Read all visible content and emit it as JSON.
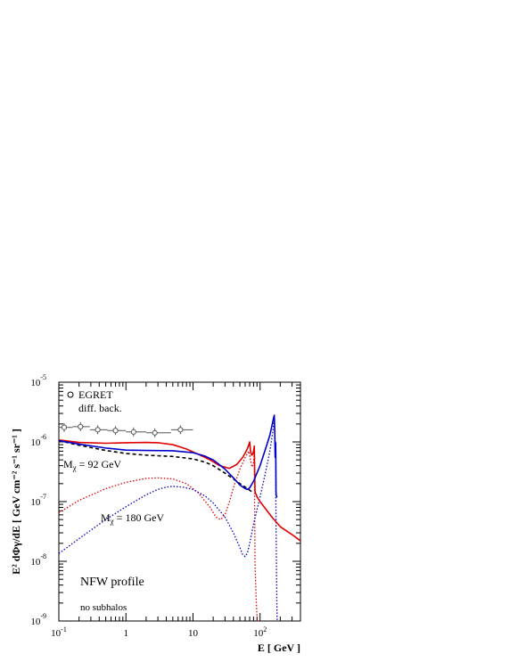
{
  "chart_data": {
    "type": "line",
    "title": "",
    "xlabel": "E [ GeV ]",
    "ylabel": "E² dΦγ/dE [ GeV cm⁻² s⁻¹ sr⁻¹ ]",
    "xscale": "log",
    "yscale": "log",
    "xlim": [
      0.1,
      400
    ],
    "ylim": [
      1e-09,
      1e-05
    ],
    "x_tick_labels": [
      {
        "value": 0.1,
        "base": "10",
        "exp": "-1"
      },
      {
        "value": 1,
        "base": "1",
        "exp": ""
      },
      {
        "value": 10,
        "base": "10",
        "exp": ""
      },
      {
        "value": 100,
        "base": "10",
        "exp": "2"
      }
    ],
    "y_tick_labels": [
      {
        "value": 1e-09,
        "base": "10",
        "exp": "-9"
      },
      {
        "value": 1e-08,
        "base": "10",
        "exp": "-8"
      },
      {
        "value": 1e-07,
        "base": "10",
        "exp": "-7"
      },
      {
        "value": 1e-06,
        "base": "10",
        "exp": "-6"
      },
      {
        "value": 1e-05,
        "base": "10",
        "exp": "-5"
      }
    ],
    "grid": false,
    "legend": {
      "position": "top-left",
      "marker_label": "EGRET",
      "line_label": "diff. back."
    },
    "annotations": {
      "m92": {
        "base": "M",
        "sub": "χ",
        "rest": " = 92 GeV",
        "color": "#e00000"
      },
      "m180": {
        "base": "M",
        "sub": "χ",
        "rest": " = 180 GeV",
        "color": "#0000cc"
      },
      "profile": "NFW profile",
      "subhalos": "no subhalos"
    },
    "series": [
      {
        "key": "egret",
        "style": "points",
        "color": "#555555",
        "x": [
          0.12,
          0.21,
          0.38,
          0.7,
          1.3,
          2.7,
          6.5
        ],
        "y": [
          1.75e-06,
          1.8e-06,
          1.6e-06,
          1.55e-06,
          1.47e-06,
          1.42e-06,
          1.6e-06
        ],
        "xerr_low": [
          0.1,
          0.16,
          0.29,
          0.53,
          1.0,
          2.0,
          4.7
        ],
        "xerr_high": [
          0.16,
          0.29,
          0.53,
          1.0,
          2.0,
          4.7,
          10.0
        ]
      },
      {
        "key": "background",
        "style": "dashed",
        "color": "#000000",
        "x": [
          0.1,
          0.2,
          0.5,
          1,
          2,
          5,
          10,
          15,
          20,
          30,
          40,
          50,
          60,
          70,
          80
        ],
        "y": [
          1.05e-06,
          8.8e-07,
          7.2e-07,
          6.4e-07,
          6e-07,
          5.7e-07,
          5.2e-07,
          4.6e-07,
          4e-07,
          3e-07,
          2.4e-07,
          2e-07,
          1.75e-07,
          1.55e-07,
          1.4e-07
        ]
      },
      {
        "key": "dm92_dotted",
        "style": "dotted",
        "color": "#e00000",
        "x": [
          0.1,
          0.2,
          0.5,
          1,
          2,
          3,
          5,
          8,
          12,
          18,
          22,
          26,
          30,
          35,
          40,
          50,
          60,
          68,
          72,
          76,
          80,
          82,
          83,
          84,
          86,
          88,
          90,
          91,
          92
        ],
        "y": [
          6.5e-08,
          1.05e-07,
          1.65e-07,
          2.1e-07,
          2.45e-07,
          2.5e-07,
          2.4e-07,
          2e-07,
          1.4e-07,
          8e-08,
          5.5e-08,
          5e-08,
          6e-08,
          1e-07,
          1.7e-07,
          3.5e-07,
          5.5e-07,
          7e-07,
          5e-07,
          3.8e-07,
          4.5e-07,
          6.5e-07,
          1e-07,
          1e-08,
          4e-09,
          2e-09,
          1.2e-09,
          1e-09,
          1e-09
        ]
      },
      {
        "key": "dm180_dotted",
        "style": "dotted",
        "color": "#0000cc",
        "x": [
          0.1,
          0.2,
          0.5,
          1,
          2,
          3,
          4,
          5,
          7,
          10,
          15,
          20,
          30,
          40,
          50,
          55,
          60,
          65,
          70,
          80,
          100,
          120,
          140,
          155,
          160,
          163,
          166,
          168,
          170,
          172,
          175,
          178,
          180
        ],
        "y": [
          1.35e-08,
          2.4e-08,
          5e-08,
          8.2e-08,
          1.3e-07,
          1.6e-07,
          1.75e-07,
          1.8e-07,
          1.75e-07,
          1.6e-07,
          1.25e-07,
          9.5e-08,
          5.5e-08,
          3e-08,
          1.7e-08,
          1.3e-08,
          1.2e-08,
          1.4e-08,
          2e-08,
          4.2e-08,
          1.2e-07,
          3e-07,
          7e-07,
          1.5e-06,
          2e-06,
          2.4e-06,
          1.2e-06,
          6e-07,
          1e-06,
          1e-07,
          1e-08,
          2e-09,
          1e-09
        ]
      },
      {
        "key": "dm92_total",
        "style": "solid",
        "color": "#e00000",
        "x": [
          0.1,
          0.2,
          0.5,
          1,
          2,
          3,
          5,
          8,
          12,
          18,
          25,
          35,
          45,
          55,
          60,
          65,
          68,
          70,
          72,
          75,
          78,
          80,
          82,
          83,
          84,
          85,
          86,
          88,
          90,
          100,
          150,
          200,
          300,
          400
        ],
        "y": [
          1.08e-06,
          9.8e-07,
          9.5e-07,
          9.7e-07,
          9.8e-07,
          9.7e-07,
          9e-07,
          7.6e-07,
          6.2e-07,
          5e-07,
          4e-07,
          3.6e-07,
          4.2e-07,
          5.5e-07,
          6.5e-07,
          7.8e-07,
          9e-07,
          1e-06,
          7e-07,
          6e-07,
          6.3e-07,
          7e-07,
          8.5e-07,
          3.5e-07,
          1.5e-07,
          1.4e-07,
          1.35e-07,
          1.3e-07,
          1.2e-07,
          1e-07,
          5.5e-08,
          3.8e-08,
          2.8e-08,
          2.2e-08
        ]
      },
      {
        "key": "dm180_total",
        "style": "solid",
        "color": "#0000cc",
        "x": [
          0.1,
          0.2,
          0.5,
          1,
          2,
          5,
          10,
          15,
          20,
          30,
          40,
          50,
          60,
          65,
          70,
          80,
          100,
          120,
          140,
          155,
          160,
          163,
          166,
          168,
          170,
          171,
          172,
          173,
          174,
          175,
          176,
          178,
          180
        ],
        "y": [
          1.05e-06,
          9.2e-07,
          7.9e-07,
          7.3e-07,
          7.2e-07,
          7.1e-07,
          6.6e-07,
          5.8e-07,
          5e-07,
          3.5e-07,
          2.5e-07,
          1.9e-07,
          1.65e-07,
          1.6e-07,
          1.7e-07,
          2.2e-07,
          4e-07,
          7.5e-07,
          1.3e-06,
          2.2e-06,
          2.6e-06,
          2.8e-06,
          1.3e-06,
          5.5e-07,
          7e-07,
          9.5e-07,
          4e-07,
          1.4e-07,
          1.3e-07,
          1.25e-07,
          1.22e-07,
          1.2e-07,
          1.18e-07
        ]
      }
    ]
  }
}
